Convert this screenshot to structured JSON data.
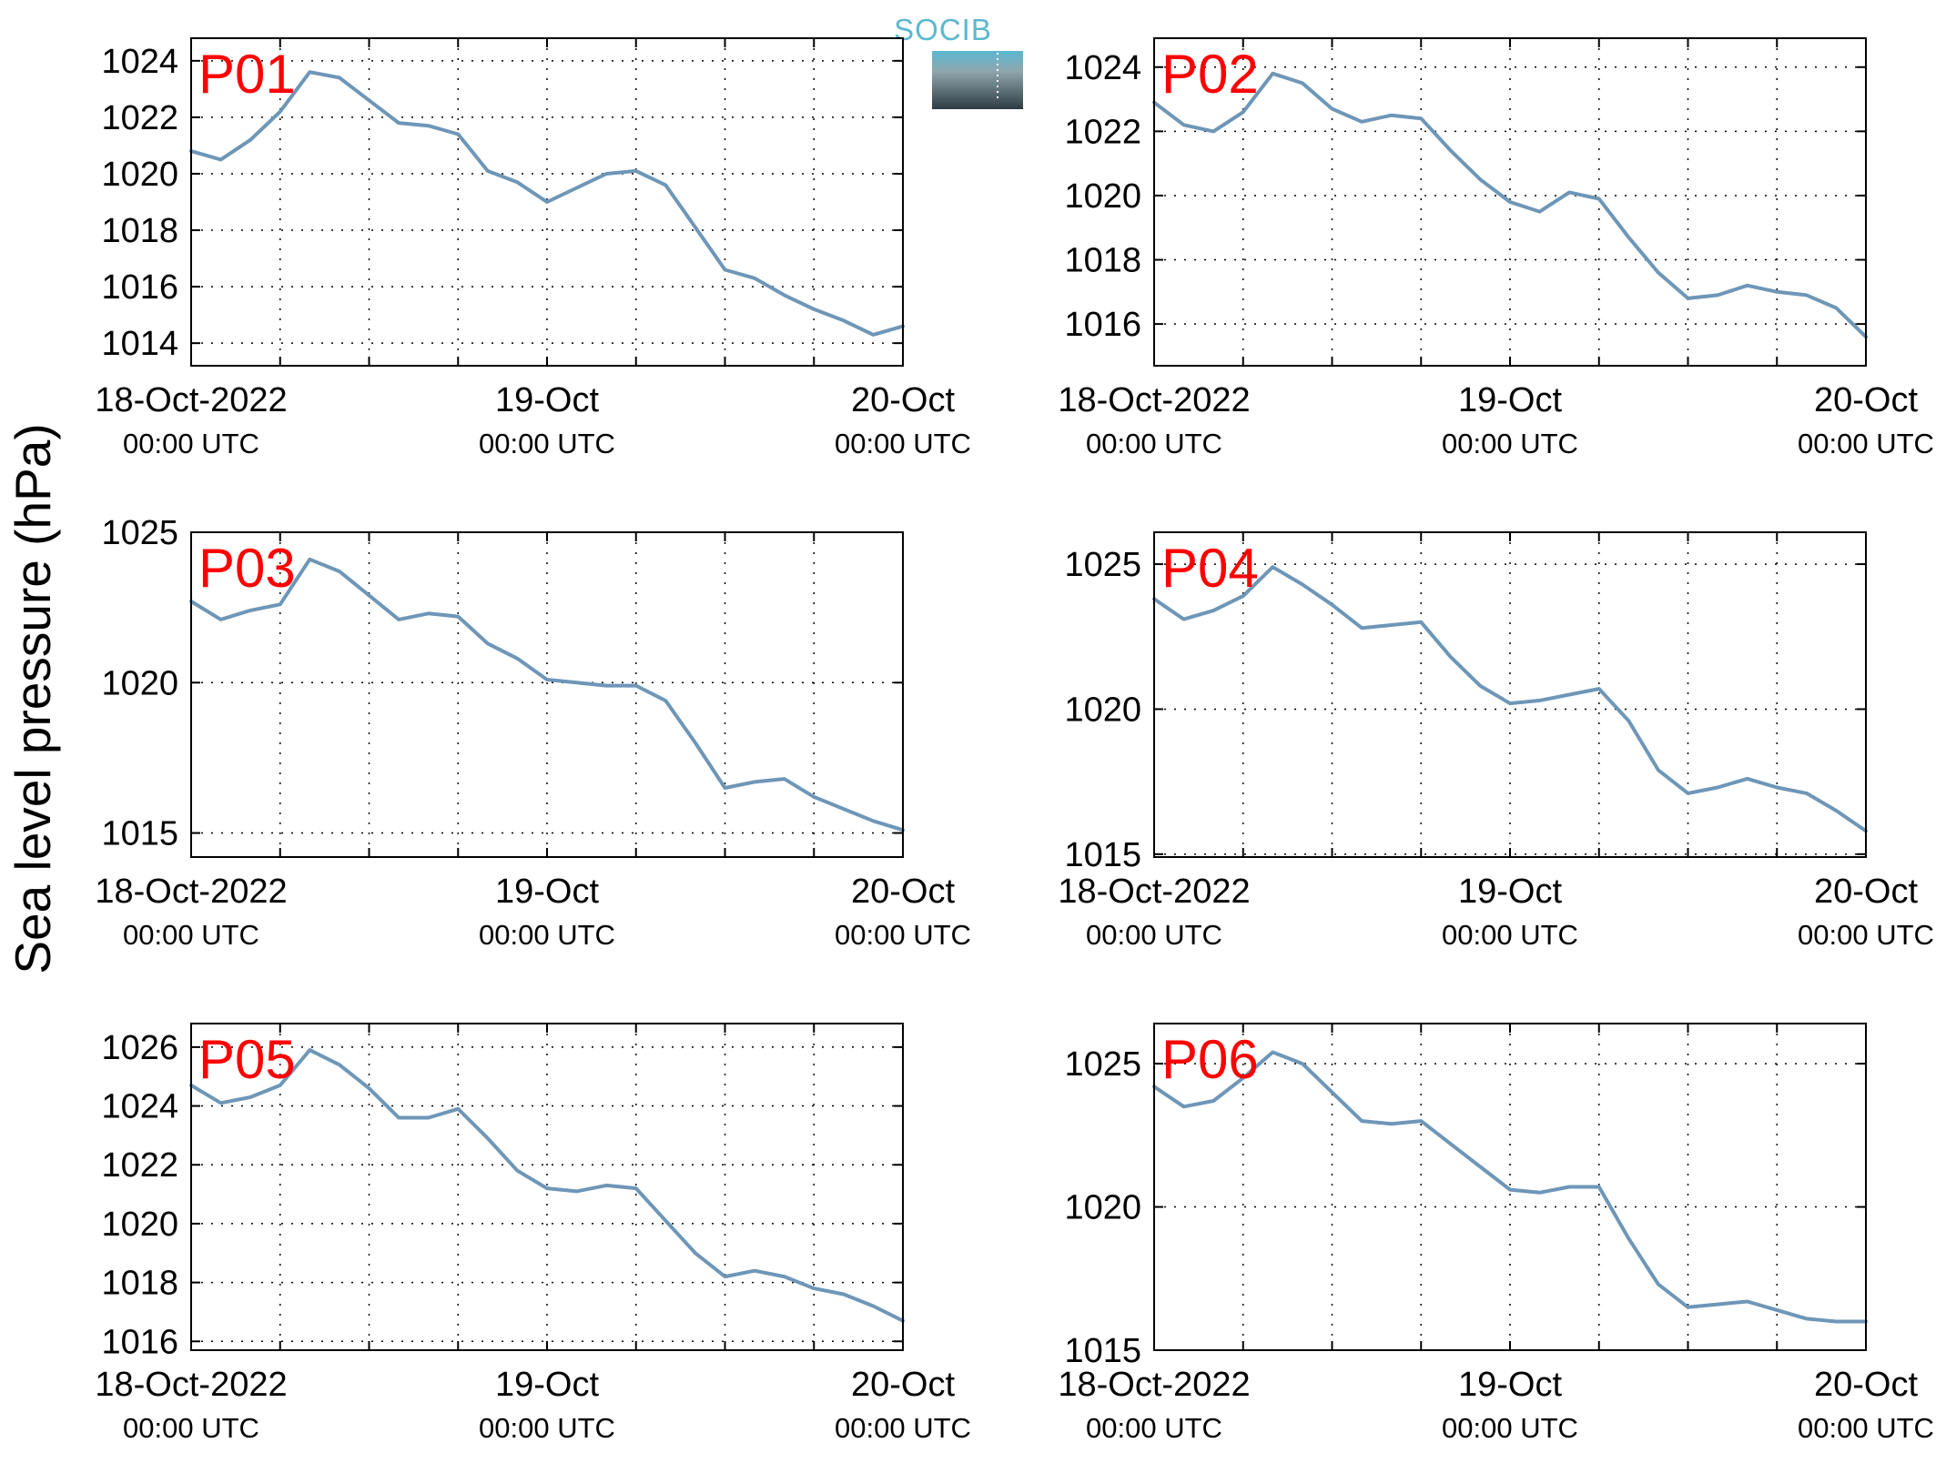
{
  "figure": {
    "ylabel": "Sea level pressure (hPa)",
    "logo_text": "SOCIB",
    "line_color": "#6e96b7",
    "label_color": "#ff0000"
  },
  "chart_data": [
    {
      "type": "line",
      "panel_label": "P01",
      "x_unit": "hours since 18-Oct-2022 00:00 UTC",
      "x_ticks": [
        {
          "x": 0,
          "label": "18-Oct-2022",
          "sub": "00:00 UTC"
        },
        {
          "x": 24,
          "label": "19-Oct",
          "sub": "00:00 UTC"
        },
        {
          "x": 48,
          "label": "20-Oct",
          "sub": "00:00 UTC"
        }
      ],
      "y_ticks": [
        1014,
        1016,
        1018,
        1020,
        1022,
        1024
      ],
      "xlim": [
        0,
        48
      ],
      "ylim": [
        1013.2,
        1024.8
      ],
      "grid": true,
      "series": [
        {
          "x": [
            0,
            2,
            4,
            6,
            8,
            10,
            12,
            14,
            16,
            18,
            20,
            22,
            24,
            26,
            28,
            30,
            32,
            34,
            36,
            38,
            40,
            42,
            44,
            46,
            48
          ],
          "values": [
            1020.8,
            1020.5,
            1021.2,
            1022.2,
            1023.6,
            1023.4,
            1022.6,
            1021.8,
            1021.7,
            1021.4,
            1020.1,
            1019.7,
            1019.0,
            1019.5,
            1020.0,
            1020.1,
            1019.6,
            1018.1,
            1016.6,
            1016.3,
            1015.7,
            1015.2,
            1014.8,
            1014.3,
            1014.6
          ]
        }
      ]
    },
    {
      "type": "line",
      "panel_label": "P02",
      "x_unit": "hours since 18-Oct-2022 00:00 UTC",
      "x_ticks": [
        {
          "x": 0,
          "label": "18-Oct-2022",
          "sub": "00:00 UTC"
        },
        {
          "x": 24,
          "label": "19-Oct",
          "sub": "00:00 UTC"
        },
        {
          "x": 48,
          "label": "20-Oct",
          "sub": "00:00 UTC"
        }
      ],
      "y_ticks": [
        1016,
        1018,
        1020,
        1022,
        1024
      ],
      "xlim": [
        0,
        48
      ],
      "ylim": [
        1014.7,
        1024.9
      ],
      "grid": true,
      "series": [
        {
          "x": [
            0,
            2,
            4,
            6,
            8,
            10,
            12,
            14,
            16,
            18,
            20,
            22,
            24,
            26,
            28,
            30,
            32,
            34,
            36,
            38,
            40,
            42,
            44,
            46,
            48
          ],
          "values": [
            1022.9,
            1022.2,
            1022.0,
            1022.6,
            1023.8,
            1023.5,
            1022.7,
            1022.3,
            1022.5,
            1022.4,
            1021.4,
            1020.5,
            1019.8,
            1019.5,
            1020.1,
            1019.9,
            1018.7,
            1017.6,
            1016.8,
            1016.9,
            1017.2,
            1017.0,
            1016.9,
            1016.5,
            1015.6
          ]
        }
      ]
    },
    {
      "type": "line",
      "panel_label": "P03",
      "x_unit": "hours since 18-Oct-2022 00:00 UTC",
      "x_ticks": [
        {
          "x": 0,
          "label": "18-Oct-2022",
          "sub": "00:00 UTC"
        },
        {
          "x": 24,
          "label": "19-Oct",
          "sub": "00:00 UTC"
        },
        {
          "x": 48,
          "label": "20-Oct",
          "sub": "00:00 UTC"
        }
      ],
      "y_ticks": [
        1015,
        1020,
        1025
      ],
      "xlim": [
        0,
        48
      ],
      "ylim": [
        1014.2,
        1025.0
      ],
      "grid": true,
      "series": [
        {
          "x": [
            0,
            2,
            4,
            6,
            8,
            10,
            12,
            14,
            16,
            18,
            20,
            22,
            24,
            26,
            28,
            30,
            32,
            34,
            36,
            38,
            40,
            42,
            44,
            46,
            48
          ],
          "values": [
            1022.7,
            1022.1,
            1022.4,
            1022.6,
            1024.1,
            1023.7,
            1022.9,
            1022.1,
            1022.3,
            1022.2,
            1021.3,
            1020.8,
            1020.1,
            1020.0,
            1019.9,
            1019.9,
            1019.4,
            1018.0,
            1016.5,
            1016.7,
            1016.8,
            1016.2,
            1015.8,
            1015.4,
            1015.1
          ]
        }
      ]
    },
    {
      "type": "line",
      "panel_label": "P04",
      "x_unit": "hours since 18-Oct-2022 00:00 UTC",
      "x_ticks": [
        {
          "x": 0,
          "label": "18-Oct-2022",
          "sub": "00:00 UTC"
        },
        {
          "x": 24,
          "label": "19-Oct",
          "sub": "00:00 UTC"
        },
        {
          "x": 48,
          "label": "20-Oct",
          "sub": "00:00 UTC"
        }
      ],
      "y_ticks": [
        1015,
        1020,
        1025
      ],
      "xlim": [
        0,
        48
      ],
      "ylim": [
        1014.9,
        1026.1
      ],
      "grid": true,
      "series": [
        {
          "x": [
            0,
            2,
            4,
            6,
            8,
            10,
            12,
            14,
            16,
            18,
            20,
            22,
            24,
            26,
            28,
            30,
            32,
            34,
            36,
            38,
            40,
            42,
            44,
            46,
            48
          ],
          "values": [
            1023.8,
            1023.1,
            1023.4,
            1023.9,
            1024.9,
            1024.3,
            1023.6,
            1022.8,
            1022.9,
            1023.0,
            1021.8,
            1020.8,
            1020.2,
            1020.3,
            1020.5,
            1020.7,
            1019.6,
            1017.9,
            1017.1,
            1017.3,
            1017.6,
            1017.3,
            1017.1,
            1016.5,
            1015.8
          ]
        }
      ]
    },
    {
      "type": "line",
      "panel_label": "P05",
      "x_unit": "hours since 18-Oct-2022 00:00 UTC",
      "x_ticks": [
        {
          "x": 0,
          "label": "18-Oct-2022",
          "sub": "00:00 UTC"
        },
        {
          "x": 24,
          "label": "19-Oct",
          "sub": "00:00 UTC"
        },
        {
          "x": 48,
          "label": "20-Oct",
          "sub": "00:00 UTC"
        }
      ],
      "y_ticks": [
        1016,
        1018,
        1020,
        1022,
        1024,
        1026
      ],
      "xlim": [
        0,
        48
      ],
      "ylim": [
        1015.7,
        1026.8
      ],
      "grid": true,
      "series": [
        {
          "x": [
            0,
            2,
            4,
            6,
            8,
            10,
            12,
            14,
            16,
            18,
            20,
            22,
            24,
            26,
            28,
            30,
            32,
            34,
            36,
            38,
            40,
            42,
            44,
            46,
            48
          ],
          "values": [
            1024.7,
            1024.1,
            1024.3,
            1024.7,
            1025.9,
            1025.4,
            1024.6,
            1023.6,
            1023.6,
            1023.9,
            1022.9,
            1021.8,
            1021.2,
            1021.1,
            1021.3,
            1021.2,
            1020.1,
            1019.0,
            1018.2,
            1018.4,
            1018.2,
            1017.8,
            1017.6,
            1017.2,
            1016.7
          ]
        }
      ]
    },
    {
      "type": "line",
      "panel_label": "P06",
      "x_unit": "hours since 18-Oct-2022 00:00 UTC",
      "x_ticks": [
        {
          "x": 0,
          "label": "18-Oct-2022",
          "sub": "00:00 UTC"
        },
        {
          "x": 24,
          "label": "19-Oct",
          "sub": "00:00 UTC"
        },
        {
          "x": 48,
          "label": "20-Oct",
          "sub": "00:00 UTC"
        }
      ],
      "y_ticks": [
        1015,
        1020,
        1025
      ],
      "xlim": [
        0,
        48
      ],
      "ylim": [
        1015.0,
        1026.4
      ],
      "grid": true,
      "series": [
        {
          "x": [
            0,
            2,
            4,
            6,
            8,
            10,
            12,
            14,
            16,
            18,
            20,
            22,
            24,
            26,
            28,
            30,
            32,
            34,
            36,
            38,
            40,
            42,
            44,
            46,
            48
          ],
          "values": [
            1024.2,
            1023.5,
            1023.7,
            1024.5,
            1025.4,
            1025.0,
            1024.0,
            1023.0,
            1022.9,
            1023.0,
            1022.2,
            1021.4,
            1020.6,
            1020.5,
            1020.7,
            1020.7,
            1018.9,
            1017.3,
            1016.5,
            1016.6,
            1016.7,
            1016.4,
            1016.1,
            1016.0,
            1016.0
          ]
        }
      ]
    }
  ]
}
